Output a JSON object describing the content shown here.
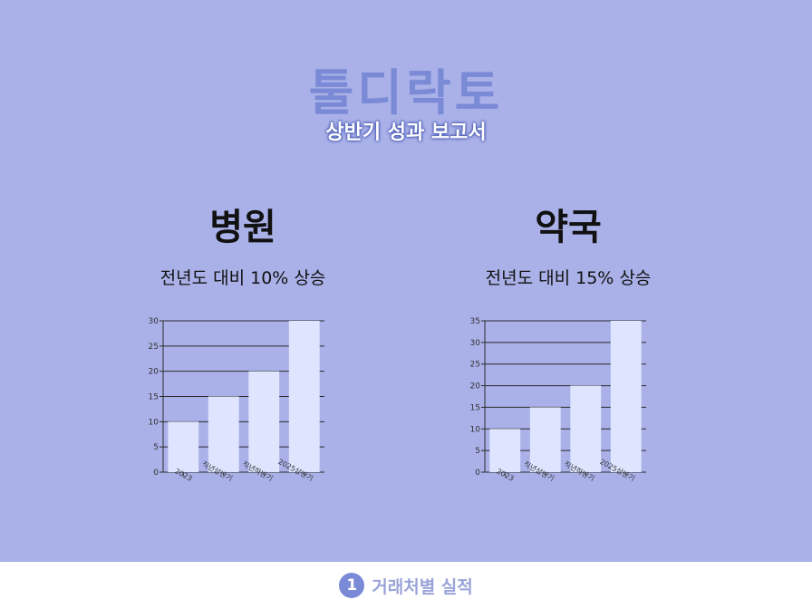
{
  "header": {
    "brand": "툴디락토",
    "subtitle": "상반기 성과 보고서"
  },
  "panels": [
    {
      "title": "병원",
      "subtitle": "전년도 대비 10% 상승"
    },
    {
      "title": "약국",
      "subtitle": "전년도 대비 15% 상승"
    }
  ],
  "footer": {
    "number": "1",
    "label": "거래처별 실적"
  },
  "colors": {
    "background": "#a9b1e8",
    "bar": "#dfe5ff",
    "brand": "#7b8ad6"
  },
  "chart_data": [
    {
      "type": "bar",
      "categories": [
        "2023",
        "직년상반기",
        "직년하반기",
        "2025상반기"
      ],
      "values": [
        10,
        15,
        20,
        30
      ],
      "ylim": [
        0,
        30
      ],
      "yticks": [
        0,
        5,
        10,
        15,
        20,
        25,
        30
      ],
      "grid": true
    },
    {
      "type": "bar",
      "categories": [
        "2023",
        "직년상반기",
        "직년하반기",
        "2025상반기"
      ],
      "values": [
        10,
        15,
        20,
        35
      ],
      "ylim": [
        0,
        35
      ],
      "yticks": [
        0,
        5,
        10,
        15,
        20,
        25,
        30,
        35
      ],
      "grid": true
    }
  ]
}
